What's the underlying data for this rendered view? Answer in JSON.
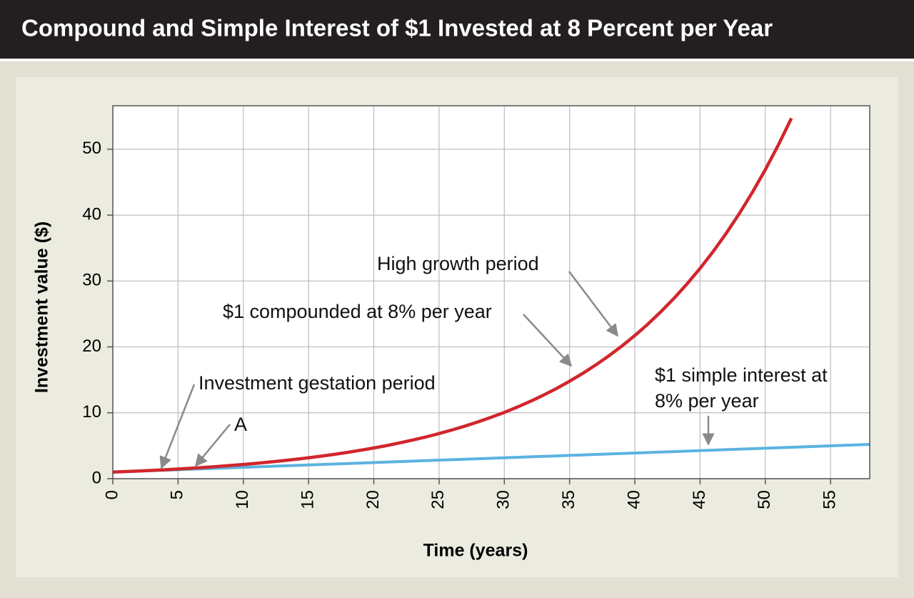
{
  "chart_data": {
    "type": "line",
    "title": "Compound and Simple Interest of $1 Invested at 8 Percent per Year",
    "x_label": "Time (years)",
    "y_label": "Investment value ($)",
    "xlim": [
      0,
      58
    ],
    "ylim": [
      0,
      56.6
    ],
    "xticks": [
      0,
      5,
      10,
      15,
      20,
      25,
      30,
      35,
      40,
      45,
      50,
      55
    ],
    "yticks": [
      0,
      10,
      20,
      30,
      40,
      50
    ],
    "grid": true,
    "series": [
      {
        "name": "$1 compounded at 8% per year",
        "color": "#d1262c",
        "x": [
          0,
          1,
          2,
          3,
          4,
          5,
          6,
          7,
          8,
          9,
          10,
          11,
          12,
          13,
          14,
          15,
          16,
          17,
          18,
          19,
          20,
          21,
          22,
          23,
          24,
          25,
          26,
          27,
          28,
          29,
          30,
          31,
          32,
          33,
          34,
          35,
          36,
          37,
          38,
          39,
          40,
          41,
          42,
          43,
          44,
          45,
          46,
          47,
          48,
          49,
          50,
          51,
          52
        ],
        "values": [
          1.0,
          1.08,
          1.17,
          1.26,
          1.36,
          1.47,
          1.59,
          1.71,
          1.85,
          2.0,
          2.16,
          2.33,
          2.52,
          2.72,
          2.94,
          3.17,
          3.43,
          3.7,
          4.0,
          4.32,
          4.66,
          5.03,
          5.44,
          5.87,
          6.34,
          6.85,
          7.4,
          7.99,
          8.63,
          9.32,
          10.06,
          10.87,
          11.74,
          12.68,
          13.69,
          14.79,
          15.97,
          17.25,
          18.63,
          20.12,
          21.72,
          23.46,
          25.34,
          27.37,
          29.56,
          31.92,
          34.47,
          37.23,
          40.21,
          43.43,
          46.9,
          50.65,
          54.7
        ]
      },
      {
        "name": "$1 simple interest at 8% per year",
        "color": "#5cb3e0",
        "x": [
          0,
          58
        ],
        "values": [
          1.0,
          5.2
        ]
      }
    ],
    "annotations": [
      {
        "text": [
          "High growth period"
        ]
      },
      {
        "text": [
          "$1 compounded at 8% per year"
        ]
      },
      {
        "text": [
          "Investment gestation period"
        ]
      },
      {
        "text": [
          "A"
        ]
      },
      {
        "text": [
          "$1 simple interest at",
          "8% per year"
        ]
      }
    ]
  }
}
